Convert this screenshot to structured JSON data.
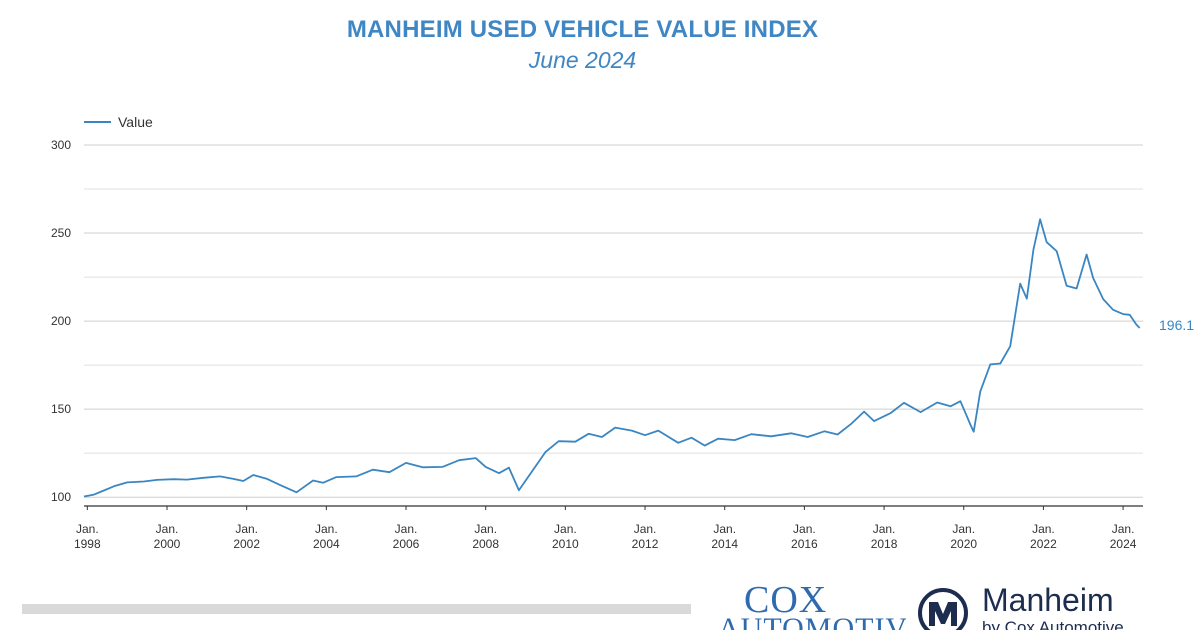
{
  "header": {
    "title": "MANHEIM USED VEHICLE VALUE INDEX",
    "subtitle": "June 2024"
  },
  "chart_data": {
    "type": "line",
    "title": "MANHEIM USED VEHICLE VALUE INDEX",
    "subtitle": "June 2024",
    "xlabel": "",
    "ylabel": "",
    "xlim": [
      "1997-12",
      "2024-07"
    ],
    "ylim": [
      95,
      300
    ],
    "yticks": [
      100,
      150,
      200,
      250,
      300
    ],
    "xticks": [
      {
        "date": "1998-01",
        "label_line1": "Jan.",
        "label_line2": "1998"
      },
      {
        "date": "2000-01",
        "label_line1": "Jan.",
        "label_line2": "2000"
      },
      {
        "date": "2002-01",
        "label_line1": "Jan.",
        "label_line2": "2002"
      },
      {
        "date": "2004-01",
        "label_line1": "Jan.",
        "label_line2": "2004"
      },
      {
        "date": "2006-01",
        "label_line1": "Jan.",
        "label_line2": "2006"
      },
      {
        "date": "2008-01",
        "label_line1": "Jan.",
        "label_line2": "2008"
      },
      {
        "date": "2010-01",
        "label_line1": "Jan.",
        "label_line2": "2010"
      },
      {
        "date": "2012-01",
        "label_line1": "Jan.",
        "label_line2": "2012"
      },
      {
        "date": "2014-01",
        "label_line1": "Jan.",
        "label_line2": "2014"
      },
      {
        "date": "2016-01",
        "label_line1": "Jan.",
        "label_line2": "2016"
      },
      {
        "date": "2018-01",
        "label_line1": "Jan.",
        "label_line2": "2018"
      },
      {
        "date": "2020-01",
        "label_line1": "Jan.",
        "label_line2": "2020"
      },
      {
        "date": "2022-01",
        "label_line1": "Jan.",
        "label_line2": "2022"
      },
      {
        "date": "2024-01",
        "label_line1": "Jan.",
        "label_line2": "2024"
      }
    ],
    "grid": true,
    "legend_position": "top-left",
    "end_label": "196.1",
    "series": [
      {
        "name": "Value",
        "color": "#3a86c2",
        "points": [
          [
            "1997-12",
            100.4
          ],
          [
            "1998-03",
            101.5
          ],
          [
            "1998-06",
            103.8
          ],
          [
            "1998-09",
            106.2
          ],
          [
            "1999-01",
            108.4
          ],
          [
            "1999-06",
            108.9
          ],
          [
            "1999-10",
            109.8
          ],
          [
            "2000-03",
            110.2
          ],
          [
            "2000-07",
            110.0
          ],
          [
            "2000-12",
            111.0
          ],
          [
            "2001-05",
            111.8
          ],
          [
            "2001-09",
            110.4
          ],
          [
            "2001-12",
            109.2
          ],
          [
            "2002-03",
            112.6
          ],
          [
            "2002-07",
            110.5
          ],
          [
            "2002-11",
            107.0
          ],
          [
            "2003-04",
            102.8
          ],
          [
            "2003-09",
            109.5
          ],
          [
            "2003-12",
            108.2
          ],
          [
            "2004-04",
            111.4
          ],
          [
            "2004-10",
            111.8
          ],
          [
            "2005-03",
            115.6
          ],
          [
            "2005-08",
            114.2
          ],
          [
            "2006-01",
            119.5
          ],
          [
            "2006-06",
            117.0
          ],
          [
            "2006-12",
            117.2
          ],
          [
            "2007-05",
            121.0
          ],
          [
            "2007-10",
            122.2
          ],
          [
            "2008-01",
            117.2
          ],
          [
            "2008-05",
            113.6
          ],
          [
            "2008-08",
            116.8
          ],
          [
            "2008-11",
            103.9
          ],
          [
            "2009-03",
            114.8
          ],
          [
            "2009-07",
            125.6
          ],
          [
            "2009-11",
            131.8
          ],
          [
            "2010-04",
            131.5
          ],
          [
            "2010-08",
            136.0
          ],
          [
            "2010-12",
            134.2
          ],
          [
            "2011-04",
            139.5
          ],
          [
            "2011-09",
            137.8
          ],
          [
            "2012-01",
            135.2
          ],
          [
            "2012-05",
            137.8
          ],
          [
            "2012-11",
            130.9
          ],
          [
            "2013-03",
            133.8
          ],
          [
            "2013-07",
            129.3
          ],
          [
            "2013-11",
            133.2
          ],
          [
            "2014-04",
            132.4
          ],
          [
            "2014-09",
            135.8
          ],
          [
            "2015-03",
            134.6
          ],
          [
            "2015-09",
            136.3
          ],
          [
            "2016-02",
            134.2
          ],
          [
            "2016-07",
            137.4
          ],
          [
            "2016-11",
            135.6
          ],
          [
            "2017-03",
            141.5
          ],
          [
            "2017-07",
            148.6
          ],
          [
            "2017-10",
            143.2
          ],
          [
            "2018-03",
            147.8
          ],
          [
            "2018-07",
            153.6
          ],
          [
            "2018-12",
            148.3
          ],
          [
            "2019-05",
            153.8
          ],
          [
            "2019-09",
            151.6
          ],
          [
            "2019-12",
            154.5
          ],
          [
            "2020-03",
            141.2
          ],
          [
            "2020-04",
            137.2
          ],
          [
            "2020-06",
            160.1
          ],
          [
            "2020-09",
            175.4
          ],
          [
            "2020-12",
            175.9
          ],
          [
            "2021-03",
            185.7
          ],
          [
            "2021-06",
            221.3
          ],
          [
            "2021-08",
            212.7
          ],
          [
            "2021-10",
            240.5
          ],
          [
            "2021-12",
            257.8
          ],
          [
            "2022-02",
            244.8
          ],
          [
            "2022-05",
            239.7
          ],
          [
            "2022-08",
            220.1
          ],
          [
            "2022-11",
            218.5
          ],
          [
            "2023-02",
            237.8
          ],
          [
            "2023-04",
            224.4
          ],
          [
            "2023-07",
            212.5
          ],
          [
            "2023-10",
            206.4
          ],
          [
            "2024-01",
            204.0
          ],
          [
            "2024-03",
            203.6
          ],
          [
            "2024-05",
            198.0
          ],
          [
            "2024-06",
            196.1
          ]
        ]
      }
    ]
  },
  "footer": {
    "cox_word": "COX",
    "cox_automotive": "AUTOMOTIVE",
    "manheim_word": "Manheim",
    "manheim_tagline": "by Cox Automotive"
  }
}
